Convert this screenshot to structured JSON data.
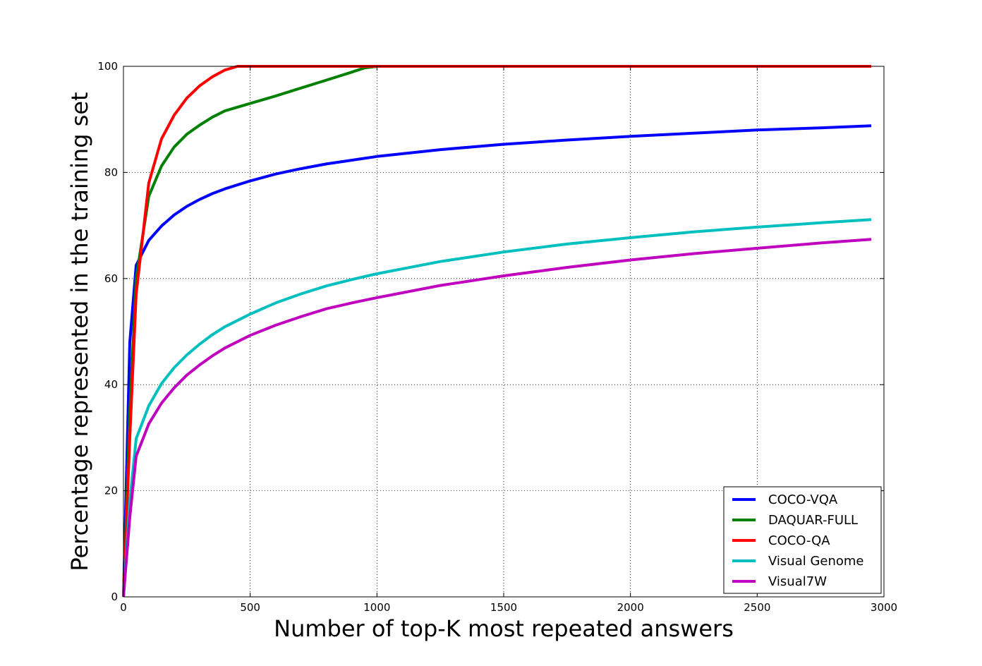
{
  "chart_data": {
    "type": "line",
    "title": "",
    "xlabel": "Number of top-K most repeated answers",
    "ylabel": "Percentage represented in the training set",
    "xlim": [
      0,
      3000
    ],
    "ylim": [
      0,
      100
    ],
    "xticks": [
      "0",
      "500",
      "1000",
      "1500",
      "2000",
      "2500",
      "3000"
    ],
    "yticks": [
      "0",
      "20",
      "40",
      "60",
      "80",
      "100"
    ],
    "grid": true,
    "legend_position": "lower-right",
    "series": [
      {
        "name": "COCO-VQA",
        "color": "#0000ff",
        "x": [
          0,
          25,
          50,
          100,
          150,
          200,
          250,
          300,
          350,
          400,
          500,
          600,
          700,
          800,
          900,
          1000,
          1250,
          1500,
          1750,
          2000,
          2250,
          2500,
          2750,
          2950
        ],
        "y": [
          0,
          48,
          62.5,
          67.2,
          69.9,
          72.0,
          73.6,
          74.9,
          76.0,
          76.9,
          78.4,
          79.7,
          80.7,
          81.6,
          82.3,
          83.0,
          84.3,
          85.3,
          86.1,
          86.8,
          87.4,
          88.0,
          88.4,
          88.8
        ]
      },
      {
        "name": "DAQUAR-FULL",
        "color": "#008000",
        "x": [
          0,
          25,
          50,
          100,
          150,
          200,
          250,
          300,
          350,
          400,
          500,
          600,
          700,
          800,
          900,
          950,
          1000,
          1500,
          2000,
          2500,
          2950
        ],
        "y": [
          0,
          35,
          60,
          75.5,
          81.2,
          84.8,
          87.2,
          88.9,
          90.4,
          91.6,
          93.0,
          94.4,
          95.9,
          97.4,
          98.9,
          99.7,
          100,
          100,
          100,
          100,
          100
        ]
      },
      {
        "name": "COCO-QA",
        "color": "#ff0000",
        "x": [
          0,
          25,
          50,
          100,
          150,
          200,
          250,
          300,
          350,
          400,
          450,
          500,
          1000,
          1500,
          2000,
          2500,
          2950
        ],
        "y": [
          0,
          30,
          57,
          78,
          86.3,
          90.8,
          94.0,
          96.3,
          98.0,
          99.3,
          100,
          100,
          100,
          100,
          100,
          100,
          100
        ]
      },
      {
        "name": "Visual Genome",
        "color": "#00bfbf",
        "x": [
          0,
          25,
          50,
          100,
          150,
          200,
          250,
          300,
          350,
          400,
          500,
          600,
          700,
          800,
          900,
          1000,
          1250,
          1500,
          1750,
          2000,
          2250,
          2500,
          2750,
          2950
        ],
        "y": [
          0,
          18,
          29.8,
          36.0,
          40.2,
          43.2,
          45.6,
          47.6,
          49.4,
          50.9,
          53.3,
          55.4,
          57.1,
          58.6,
          59.8,
          60.9,
          63.2,
          65.0,
          66.5,
          67.7,
          68.8,
          69.7,
          70.5,
          71.1
        ]
      },
      {
        "name": "Visual7W",
        "color": "#bf00bf",
        "x": [
          0,
          25,
          50,
          100,
          150,
          200,
          250,
          300,
          350,
          400,
          500,
          600,
          700,
          800,
          900,
          1000,
          1250,
          1500,
          1750,
          2000,
          2250,
          2500,
          2750,
          2950
        ],
        "y": [
          0,
          15,
          26.5,
          32.6,
          36.5,
          39.4,
          41.8,
          43.7,
          45.4,
          46.9,
          49.3,
          51.2,
          52.8,
          54.3,
          55.4,
          56.4,
          58.7,
          60.5,
          62.1,
          63.5,
          64.7,
          65.7,
          66.7,
          67.4
        ]
      }
    ]
  }
}
